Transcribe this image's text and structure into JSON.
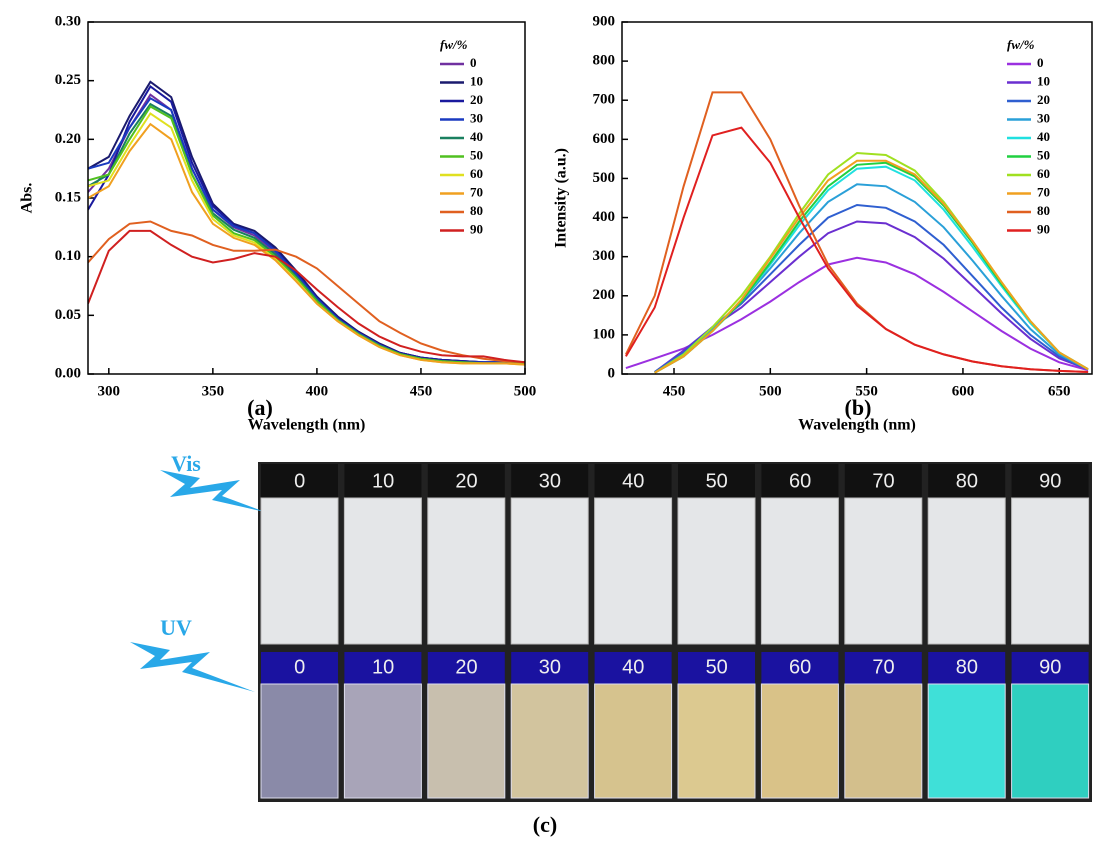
{
  "chart_data": [
    {
      "type": "line",
      "caption": "(a)",
      "xlabel": "Wavelength (nm)",
      "ylabel": "Abs.",
      "legend_title": "fw/%",
      "xlim": [
        290,
        500
      ],
      "xticks": [
        300,
        350,
        400,
        450,
        500
      ],
      "ylim": [
        0,
        0.3
      ],
      "yticks": [
        {
          "value": 0,
          "label": "0.00"
        },
        {
          "value": 0.05,
          "label": "0.05"
        },
        {
          "value": 0.1,
          "label": "0.10"
        },
        {
          "value": 0.15,
          "label": "0.15"
        },
        {
          "value": 0.2,
          "label": "0.20"
        },
        {
          "value": 0.25,
          "label": "0.25"
        },
        {
          "value": 0.3,
          "label": "0.30"
        }
      ],
      "x": [
        290,
        300,
        310,
        320,
        330,
        340,
        350,
        360,
        370,
        380,
        390,
        400,
        410,
        420,
        430,
        440,
        450,
        460,
        470,
        480,
        490,
        500
      ],
      "series": [
        {
          "name": "0",
          "color": "#7030a0",
          "values": [
            0.155,
            0.175,
            0.21,
            0.238,
            0.225,
            0.175,
            0.14,
            0.125,
            0.118,
            0.104,
            0.085,
            0.065,
            0.048,
            0.036,
            0.026,
            0.018,
            0.014,
            0.012,
            0.011,
            0.01,
            0.01,
            0.01
          ]
        },
        {
          "name": "10",
          "color": "#1a1a6e",
          "values": [
            0.175,
            0.185,
            0.22,
            0.249,
            0.236,
            0.185,
            0.145,
            0.128,
            0.122,
            0.108,
            0.088,
            0.066,
            0.049,
            0.036,
            0.026,
            0.018,
            0.014,
            0.012,
            0.011,
            0.01,
            0.01,
            0.01
          ]
        },
        {
          "name": "20",
          "color": "#1a1a9e",
          "values": [
            0.14,
            0.17,
            0.215,
            0.245,
            0.232,
            0.18,
            0.143,
            0.127,
            0.12,
            0.106,
            0.086,
            0.065,
            0.048,
            0.035,
            0.025,
            0.018,
            0.014,
            0.012,
            0.011,
            0.01,
            0.01,
            0.009
          ]
        },
        {
          "name": "30",
          "color": "#1a3ac0",
          "values": [
            0.175,
            0.18,
            0.21,
            0.235,
            0.225,
            0.175,
            0.14,
            0.126,
            0.12,
            0.105,
            0.085,
            0.064,
            0.047,
            0.035,
            0.025,
            0.017,
            0.013,
            0.011,
            0.01,
            0.01,
            0.01,
            0.009
          ]
        },
        {
          "name": "40",
          "color": "#1a8060",
          "values": [
            0.16,
            0.17,
            0.205,
            0.23,
            0.22,
            0.17,
            0.137,
            0.123,
            0.116,
            0.102,
            0.083,
            0.063,
            0.046,
            0.034,
            0.024,
            0.017,
            0.013,
            0.011,
            0.01,
            0.009,
            0.009,
            0.009
          ]
        },
        {
          "name": "50",
          "color": "#50c020",
          "values": [
            0.165,
            0.17,
            0.2,
            0.228,
            0.218,
            0.17,
            0.135,
            0.12,
            0.114,
            0.1,
            0.082,
            0.062,
            0.046,
            0.034,
            0.024,
            0.017,
            0.013,
            0.011,
            0.01,
            0.009,
            0.009,
            0.009
          ]
        },
        {
          "name": "60",
          "color": "#e0e020",
          "values": [
            0.16,
            0.165,
            0.195,
            0.222,
            0.21,
            0.165,
            0.132,
            0.118,
            0.112,
            0.098,
            0.08,
            0.06,
            0.045,
            0.033,
            0.023,
            0.016,
            0.012,
            0.01,
            0.009,
            0.009,
            0.009,
            0.008
          ]
        },
        {
          "name": "70",
          "color": "#f0a020",
          "values": [
            0.15,
            0.16,
            0.19,
            0.213,
            0.2,
            0.155,
            0.128,
            0.116,
            0.11,
            0.097,
            0.079,
            0.06,
            0.045,
            0.033,
            0.023,
            0.016,
            0.012,
            0.01,
            0.009,
            0.009,
            0.009,
            0.008
          ]
        },
        {
          "name": "80",
          "color": "#e06020",
          "values": [
            0.095,
            0.115,
            0.128,
            0.13,
            0.122,
            0.118,
            0.11,
            0.105,
            0.105,
            0.106,
            0.1,
            0.09,
            0.075,
            0.06,
            0.045,
            0.035,
            0.026,
            0.02,
            0.016,
            0.013,
            0.011,
            0.01
          ]
        },
        {
          "name": "90",
          "color": "#d02020",
          "values": [
            0.06,
            0.105,
            0.122,
            0.122,
            0.11,
            0.1,
            0.095,
            0.098,
            0.103,
            0.1,
            0.088,
            0.072,
            0.057,
            0.043,
            0.032,
            0.024,
            0.019,
            0.016,
            0.015,
            0.015,
            0.012,
            0.01
          ]
        }
      ]
    },
    {
      "type": "line",
      "caption": "(b)",
      "xlabel": "Wavelength (nm)",
      "ylabel": "Intensity (a.u.)",
      "legend_title": "fw/%",
      "xlim": [
        423,
        667
      ],
      "xticks": [
        450,
        500,
        550,
        600,
        650
      ],
      "ylim": [
        0,
        900
      ],
      "yticks": [
        0,
        100,
        200,
        300,
        400,
        500,
        600,
        700,
        800,
        900
      ],
      "x": [
        425,
        440,
        455,
        470,
        485,
        500,
        515,
        530,
        545,
        560,
        575,
        590,
        605,
        620,
        635,
        650,
        665
      ],
      "series": [
        {
          "name": "0",
          "color": "#9b30e0",
          "values": [
            15,
            40,
            65,
            100,
            140,
            185,
            235,
            280,
            297,
            285,
            255,
            210,
            160,
            110,
            65,
            30,
            10
          ]
        },
        {
          "name": "10",
          "color": "#6a2fd0",
          "values": [
            null,
            5,
            60,
            120,
            170,
            235,
            300,
            360,
            390,
            385,
            350,
            295,
            225,
            155,
            90,
            40,
            12
          ]
        },
        {
          "name": "20",
          "color": "#2f5fd0",
          "values": [
            null,
            5,
            55,
            120,
            180,
            255,
            330,
            400,
            432,
            425,
            390,
            330,
            250,
            170,
            100,
            45,
            12
          ]
        },
        {
          "name": "30",
          "color": "#2aa0d8",
          "values": [
            null,
            3,
            50,
            115,
            185,
            270,
            360,
            440,
            485,
            480,
            440,
            375,
            290,
            200,
            115,
            50,
            12
          ]
        },
        {
          "name": "40",
          "color": "#20e0e0",
          "values": [
            null,
            3,
            45,
            110,
            185,
            280,
            380,
            470,
            525,
            530,
            495,
            420,
            325,
            225,
            130,
            55,
            12
          ]
        },
        {
          "name": "50",
          "color": "#20d040",
          "values": [
            null,
            3,
            45,
            110,
            185,
            285,
            390,
            480,
            535,
            540,
            505,
            430,
            335,
            230,
            135,
            55,
            12
          ]
        },
        {
          "name": "60",
          "color": "#a0e020",
          "values": [
            null,
            3,
            50,
            120,
            200,
            300,
            410,
            510,
            565,
            560,
            520,
            440,
            340,
            235,
            135,
            55,
            12
          ]
        },
        {
          "name": "70",
          "color": "#f0a020",
          "values": [
            null,
            3,
            45,
            110,
            190,
            295,
            400,
            495,
            545,
            545,
            510,
            435,
            340,
            235,
            135,
            55,
            12
          ]
        },
        {
          "name": "80",
          "color": "#e06020",
          "values": [
            50,
            200,
            480,
            720,
            720,
            600,
            430,
            280,
            180,
            115,
            75,
            50,
            32,
            20,
            12,
            8,
            5
          ]
        },
        {
          "name": "90",
          "color": "#e02020",
          "values": [
            45,
            170,
            400,
            610,
            630,
            540,
            400,
            270,
            175,
            115,
            75,
            50,
            32,
            20,
            12,
            8,
            5
          ]
        }
      ]
    }
  ],
  "photo": {
    "vis_label": "Vis",
    "uv_label": "UV",
    "caption": "(c)",
    "vis_caps": [
      "0",
      "10",
      "20",
      "30",
      "40",
      "50",
      "60",
      "70",
      "80",
      "90"
    ],
    "uv_caps": [
      "0",
      "10",
      "20",
      "30",
      "40",
      "50",
      "60",
      "70",
      "80",
      "90"
    ]
  }
}
